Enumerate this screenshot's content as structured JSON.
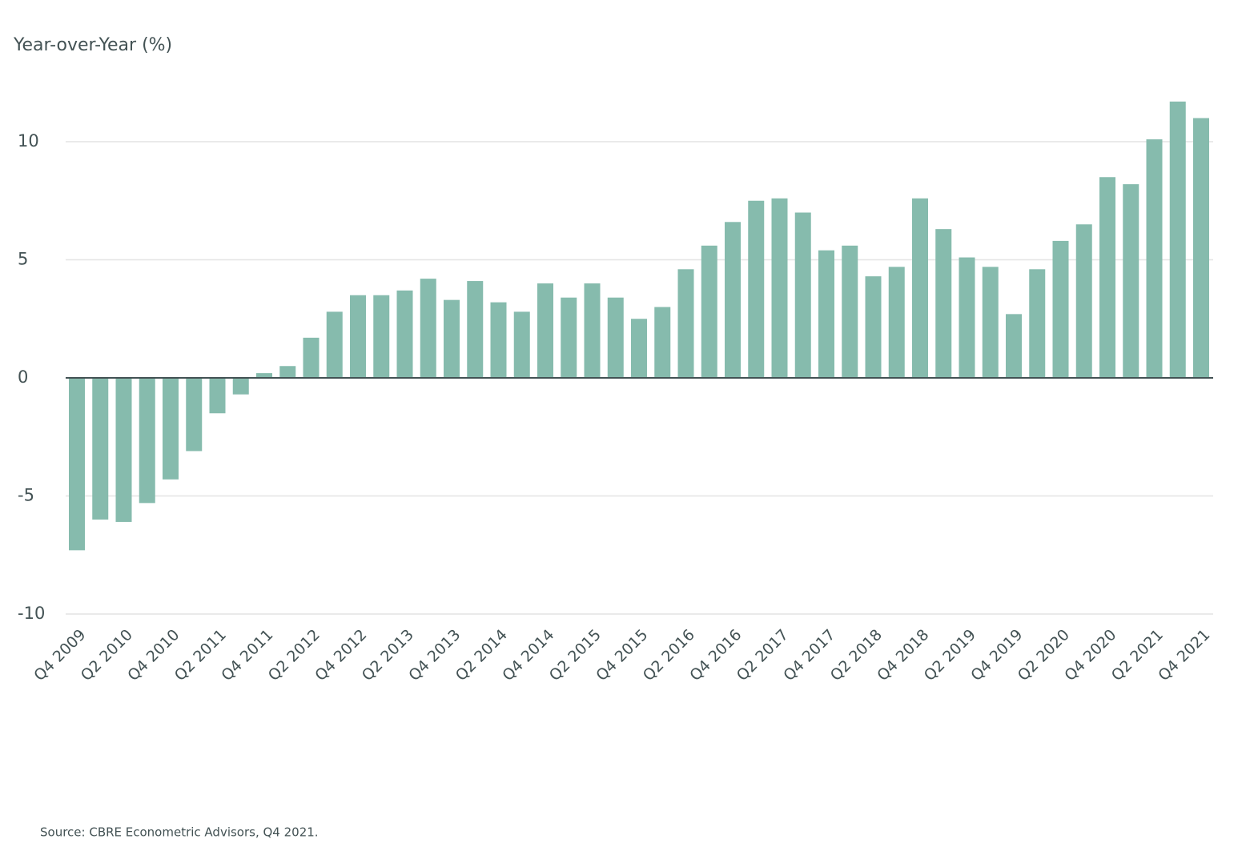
{
  "chart_data": {
    "type": "bar",
    "title": "Year-over-Year (%)",
    "source": "Source: CBRE Econometric Advisors, Q4 2021.",
    "categories": [
      "Q4 2009",
      null,
      "Q2 2010",
      null,
      "Q4 2010",
      null,
      "Q2 2011",
      null,
      "Q4 2011",
      null,
      "Q2 2012",
      null,
      "Q4 2012",
      null,
      "Q2 2013",
      null,
      "Q4 2013",
      null,
      "Q2 2014",
      null,
      "Q4 2014",
      null,
      "Q2 2015",
      null,
      "Q4 2015",
      null,
      "Q2 2016",
      null,
      "Q4 2016",
      null,
      "Q2 2017",
      null,
      "Q4 2017",
      null,
      "Q2 2018",
      null,
      "Q4 2018",
      null,
      "Q2 2019",
      null,
      "Q4 2019",
      null,
      "Q2 2020",
      null,
      "Q4 2020",
      null,
      "Q2 2021",
      null,
      "Q4 2021"
    ],
    "values": [
      -7.3,
      -6.0,
      -6.1,
      -5.3,
      -4.3,
      -3.1,
      -1.5,
      -0.7,
      0.2,
      0.5,
      1.7,
      2.8,
      3.5,
      3.5,
      3.7,
      4.2,
      3.3,
      4.1,
      3.2,
      2.8,
      4.0,
      3.4,
      4.0,
      3.4,
      2.5,
      3.0,
      4.6,
      5.6,
      6.6,
      7.5,
      7.6,
      7.0,
      5.4,
      5.6,
      4.3,
      4.7,
      7.6,
      6.3,
      5.1,
      4.7,
      2.7,
      4.6,
      5.8,
      6.5,
      8.5,
      8.2,
      10.1,
      11.7,
      11.0
    ],
    "color": "#86bbad",
    "ylim": [
      -10,
      12
    ],
    "yticks": [
      -10,
      -5,
      0,
      5,
      10
    ],
    "grid": true
  }
}
